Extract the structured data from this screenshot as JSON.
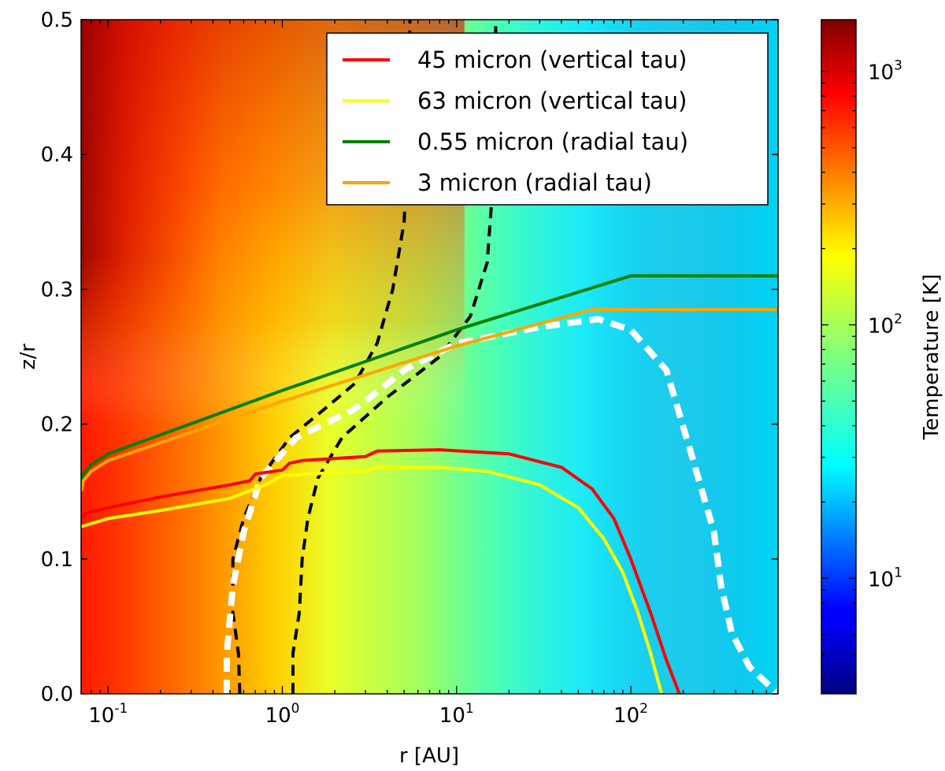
{
  "chart_data": {
    "type": "heatmap",
    "title": "",
    "xlabel": "r [AU]",
    "ylabel": "z/r",
    "xscale": "log",
    "xlim": [
      0.07,
      700
    ],
    "ylim": [
      0.0,
      0.5
    ],
    "y_ticks": [
      {
        "value": 0.0,
        "label": "0.0"
      },
      {
        "value": 0.1,
        "label": "0.1"
      },
      {
        "value": 0.2,
        "label": "0.2"
      },
      {
        "value": 0.3,
        "label": "0.3"
      },
      {
        "value": 0.4,
        "label": "0.4"
      },
      {
        "value": 0.5,
        "label": "0.5"
      }
    ],
    "x_ticks": [
      {
        "value": 0.1,
        "base": "10",
        "exp": "-1"
      },
      {
        "value": 1,
        "base": "10",
        "exp": "0"
      },
      {
        "value": 10,
        "base": "10",
        "exp": "1"
      },
      {
        "value": 100,
        "base": "10",
        "exp": "2"
      }
    ],
    "colorbar": {
      "label": "Temperature [K]",
      "scale": "log",
      "range": [
        3.5,
        1600
      ],
      "colormap": "jet",
      "ticks": [
        {
          "value": 10,
          "base": "10",
          "exp": "1"
        },
        {
          "value": 100,
          "base": "10",
          "exp": "2"
        },
        {
          "value": 1000,
          "base": "10",
          "exp": "3"
        }
      ]
    },
    "legend_position": "top-right",
    "series": [
      {
        "name": "45 micron (vertical tau)",
        "color": "#ff0000",
        "style": "solid",
        "x": [
          0.07,
          0.075,
          0.1,
          0.2,
          0.5,
          0.65,
          0.7,
          1.0,
          1.1,
          1.3,
          3.0,
          3.5,
          8,
          20,
          40,
          60,
          80,
          100,
          130,
          160,
          190
        ],
        "y": [
          0.13,
          0.134,
          0.138,
          0.146,
          0.155,
          0.158,
          0.163,
          0.166,
          0.171,
          0.173,
          0.176,
          0.18,
          0.181,
          0.178,
          0.168,
          0.152,
          0.13,
          0.1,
          0.06,
          0.025,
          0.0
        ]
      },
      {
        "name": "63 micron (vertical tau)",
        "color": "#ffff00",
        "style": "solid",
        "x": [
          0.07,
          0.1,
          0.2,
          0.5,
          0.8,
          1.0,
          2.0,
          3.0,
          3.5,
          8,
          15,
          30,
          50,
          70,
          90,
          110,
          130,
          150
        ],
        "y": [
          0.124,
          0.13,
          0.136,
          0.145,
          0.155,
          0.162,
          0.164,
          0.165,
          0.168,
          0.168,
          0.165,
          0.155,
          0.138,
          0.115,
          0.09,
          0.06,
          0.03,
          0.0
        ]
      },
      {
        "name": "0.55 micron (radial tau)",
        "color": "#008000",
        "style": "solid",
        "x": [
          0.07,
          0.072,
          0.08,
          0.1,
          1,
          10,
          100,
          700
        ],
        "y": [
          0.155,
          0.163,
          0.17,
          0.178,
          0.225,
          0.27,
          0.31,
          0.31
        ]
      },
      {
        "name": "3 micron (radial tau)",
        "color": "#ffa500",
        "style": "solid",
        "x": [
          0.07,
          0.072,
          0.08,
          0.1,
          1,
          10,
          60,
          700
        ],
        "y": [
          0.15,
          0.158,
          0.165,
          0.173,
          0.217,
          0.258,
          0.285,
          0.285
        ]
      }
    ],
    "contours": [
      {
        "name": "black-dashed-left",
        "color": "#000000",
        "style": "dashed",
        "x": [
          0.57,
          0.56,
          0.52,
          0.52,
          0.6,
          0.75,
          1.1,
          1.7,
          2.6,
          3.5,
          4.3,
          5.0,
          5.2,
          5.3,
          5.4
        ],
        "y": [
          0.0,
          0.03,
          0.06,
          0.1,
          0.13,
          0.16,
          0.19,
          0.21,
          0.23,
          0.26,
          0.3,
          0.35,
          0.4,
          0.45,
          0.5
        ]
      },
      {
        "name": "black-dashed-right",
        "color": "#000000",
        "style": "dashed",
        "x": [
          1.15,
          1.15,
          1.25,
          1.3,
          1.4,
          1.6,
          2.2,
          4.0,
          8.0,
          12.0,
          15.0,
          16.0,
          16.5,
          16.8
        ],
        "y": [
          0.0,
          0.03,
          0.06,
          0.1,
          0.13,
          0.16,
          0.19,
          0.22,
          0.25,
          0.28,
          0.32,
          0.37,
          0.43,
          0.5
        ]
      },
      {
        "name": "white-dashed",
        "color": "#ffffff",
        "style": "dashed-thick",
        "x": [
          0.48,
          0.48,
          0.52,
          0.6,
          0.75,
          1.2,
          2.5,
          3.2,
          5.0,
          10,
          30,
          65,
          100,
          160,
          220,
          300,
          330,
          380,
          480,
          700
        ],
        "y": [
          0.0,
          0.03,
          0.08,
          0.12,
          0.16,
          0.19,
          0.21,
          0.22,
          0.24,
          0.26,
          0.272,
          0.278,
          0.27,
          0.24,
          0.18,
          0.12,
          0.08,
          0.045,
          0.02,
          0.0
        ]
      }
    ]
  }
}
